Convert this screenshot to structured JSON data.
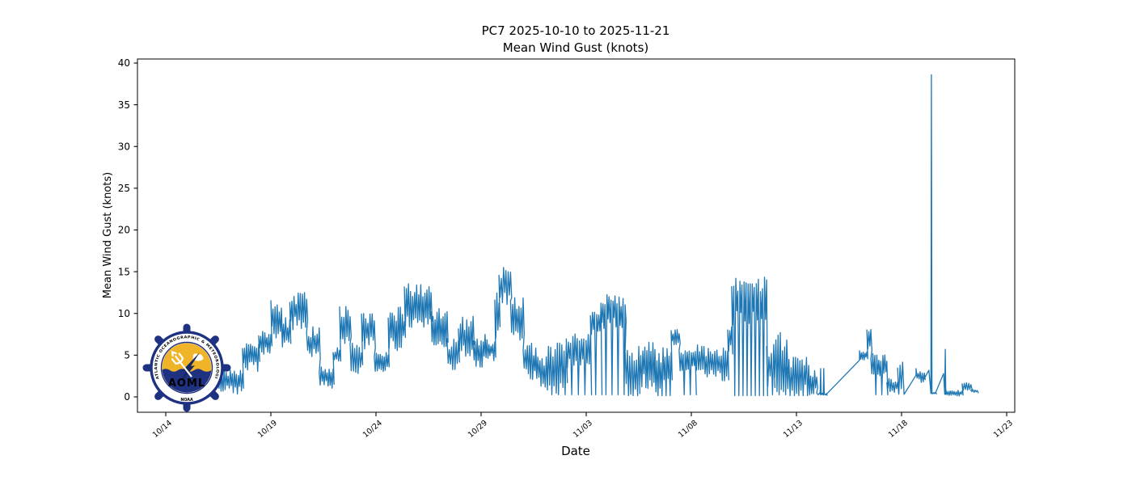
{
  "title": {
    "line1": "PC7 2025-10-10 to 2025-11-21",
    "line2": "Mean Wind Gust (knots)"
  },
  "axes": {
    "xlabel": "Date",
    "ylabel": "Mean Wind Gust (knots)",
    "y_ticks": [
      0,
      5,
      10,
      15,
      20,
      25,
      30,
      35,
      40
    ],
    "x_ticks": [
      {
        "day": 4,
        "label": "10/14"
      },
      {
        "day": 9,
        "label": "10/19"
      },
      {
        "day": 14,
        "label": "10/24"
      },
      {
        "day": 19,
        "label": "10/29"
      },
      {
        "day": 24,
        "label": "11/03"
      },
      {
        "day": 29,
        "label": "11/08"
      },
      {
        "day": 34,
        "label": "11/13"
      },
      {
        "day": 39,
        "label": "11/18"
      },
      {
        "day": 44,
        "label": "11/23"
      }
    ],
    "ylim": [
      -1.9,
      40.4
    ],
    "xlim_days": [
      2.65,
      44.39
    ],
    "grid": false
  },
  "chart_data": {
    "type": "line",
    "series_name": "Mean Wind Gust",
    "units": "knots",
    "line_color": "#1f77b4",
    "x_unit": "days since 2025-10-10",
    "data_start_day": 4.54,
    "data_end_day": 42.6,
    "max_value": 38.6,
    "max_value_day": 40.42,
    "envelope_note": "noisy high-frequency gust record encoded as min/max envelope segments; drops = intermittent dips to ~0",
    "envelope_segments": [
      {
        "mode": "band",
        "d0": 4.54,
        "d1": 6.0,
        "lo": 0.7,
        "hi": 3.2
      },
      {
        "mode": "band",
        "d0": 6.0,
        "d1": 7.65,
        "lo": 0.3,
        "hi": 3.4
      },
      {
        "mode": "band",
        "d0": 7.65,
        "d1": 8.42,
        "lo": 3.0,
        "hi": 6.8
      },
      {
        "mode": "band",
        "d0": 8.42,
        "d1": 9.0,
        "lo": 5.0,
        "hi": 8.2
      },
      {
        "mode": "band",
        "d0": 9.0,
        "d1": 9.5,
        "lo": 7.0,
        "hi": 11.8
      },
      {
        "mode": "band",
        "d0": 9.5,
        "d1": 9.9,
        "lo": 5.5,
        "hi": 9.5
      },
      {
        "mode": "band",
        "d0": 9.9,
        "d1": 10.7,
        "lo": 8.0,
        "hi": 12.7
      },
      {
        "mode": "band",
        "d0": 10.7,
        "d1": 11.3,
        "lo": 4.5,
        "hi": 8.5
      },
      {
        "mode": "band",
        "d0": 11.3,
        "d1": 11.96,
        "lo": 1.0,
        "hi": 3.8
      },
      {
        "mode": "band",
        "d0": 11.96,
        "d1": 12.27,
        "lo": 4.0,
        "hi": 6.0
      },
      {
        "mode": "band",
        "d0": 12.27,
        "d1": 12.77,
        "lo": 6.0,
        "hi": 11.0
      },
      {
        "mode": "band",
        "d0": 12.77,
        "d1": 13.31,
        "lo": 2.7,
        "hi": 6.5
      },
      {
        "mode": "band",
        "d0": 13.31,
        "d1": 13.92,
        "lo": 5.5,
        "hi": 10.5
      },
      {
        "mode": "band",
        "d0": 13.92,
        "d1": 14.58,
        "lo": 3.0,
        "hi": 5.5
      },
      {
        "mode": "band",
        "d0": 14.58,
        "d1": 15.35,
        "lo": 5.5,
        "hi": 10.9
      },
      {
        "mode": "band",
        "d0": 15.35,
        "d1": 16.62,
        "lo": 8.3,
        "hi": 13.7
      },
      {
        "mode": "band",
        "d0": 16.62,
        "d1": 17.38,
        "lo": 5.7,
        "hi": 10.9
      },
      {
        "mode": "band",
        "d0": 17.38,
        "d1": 17.92,
        "lo": 2.8,
        "hi": 7.0
      },
      {
        "mode": "band",
        "d0": 17.92,
        "d1": 18.62,
        "lo": 4.4,
        "hi": 9.8
      },
      {
        "mode": "band",
        "d0": 18.62,
        "d1": 19.19,
        "lo": 3.5,
        "hi": 7.5
      },
      {
        "mode": "band",
        "d0": 19.19,
        "d1": 19.65,
        "lo": 4.3,
        "hi": 7.0
      },
      {
        "mode": "band",
        "d0": 19.65,
        "d1": 19.85,
        "lo": 7.0,
        "hi": 13.0
      },
      {
        "mode": "band",
        "d0": 19.85,
        "d1": 20.4,
        "lo": 11.0,
        "hi": 15.9
      },
      {
        "mode": "band",
        "d0": 20.4,
        "d1": 21.0,
        "lo": 6.0,
        "hi": 12.0
      },
      {
        "mode": "band",
        "d0": 21.0,
        "d1": 21.6,
        "lo": 2.0,
        "hi": 6.5
      },
      {
        "mode": "band",
        "d0": 21.6,
        "d1": 22.1,
        "lo": 1.0,
        "hi": 5.0
      },
      {
        "mode": "band",
        "d0": 22.1,
        "d1": 23.05,
        "lo": 0.3,
        "hi": 6.5,
        "drops": "some"
      },
      {
        "mode": "band",
        "d0": 23.05,
        "d1": 24.2,
        "lo": 3.5,
        "hi": 7.9,
        "drops": "some"
      },
      {
        "mode": "band",
        "d0": 24.2,
        "d1": 24.7,
        "lo": 7.5,
        "hi": 10.8,
        "drops": "some"
      },
      {
        "mode": "band",
        "d0": 24.7,
        "d1": 25.85,
        "lo": 8.0,
        "hi": 12.3,
        "drops": "some"
      },
      {
        "mode": "band",
        "d0": 25.85,
        "d1": 26.5,
        "lo": 0.3,
        "hi": 5.8,
        "drops": "dense"
      },
      {
        "mode": "band",
        "d0": 26.5,
        "d1": 27.27,
        "lo": 0.7,
        "hi": 7.0
      },
      {
        "mode": "band",
        "d0": 27.27,
        "d1": 28.04,
        "lo": 0.3,
        "hi": 6.0,
        "drops": "dense"
      },
      {
        "mode": "band",
        "d0": 28.04,
        "d1": 28.42,
        "lo": 6.0,
        "hi": 8.1
      },
      {
        "mode": "band",
        "d0": 28.42,
        "d1": 29.19,
        "lo": 2.9,
        "hi": 6.0,
        "drops": "some"
      },
      {
        "mode": "band",
        "d0": 29.19,
        "d1": 30.73,
        "lo": 1.9,
        "hi": 6.3
      },
      {
        "mode": "band",
        "d0": 30.73,
        "d1": 30.92,
        "lo": 5.0,
        "hi": 8.6
      },
      {
        "mode": "band",
        "d0": 30.92,
        "d1": 32.58,
        "lo": 8.6,
        "hi": 14.6,
        "drops": "dense"
      },
      {
        "mode": "band",
        "d0": 32.58,
        "d1": 32.92,
        "lo": 0.5,
        "hi": 6.9,
        "drops": "some"
      },
      {
        "mode": "band",
        "d0": 32.92,
        "d1": 33.54,
        "lo": 0.4,
        "hi": 7.8,
        "drops": "some"
      },
      {
        "mode": "band",
        "d0": 33.54,
        "d1": 34.58,
        "lo": 0.3,
        "hi": 5.2,
        "drops": "dense"
      },
      {
        "mode": "band",
        "d0": 34.58,
        "d1": 34.96,
        "lo": 0.2,
        "hi": 3.2
      },
      {
        "mode": "flat",
        "d0": 34.96,
        "d1": 35.1,
        "lo": 0.2,
        "hi": 0.5
      },
      {
        "mode": "spike",
        "d": 35.15,
        "v": 3.4,
        "base": 0.3
      },
      {
        "mode": "flat",
        "d0": 35.2,
        "d1": 35.26,
        "lo": 0.2,
        "hi": 0.5
      },
      {
        "mode": "spike",
        "d": 35.3,
        "v": 3.4,
        "base": 0.3
      },
      {
        "mode": "flat",
        "d0": 35.34,
        "d1": 35.42,
        "lo": 0.2,
        "hi": 0.4
      },
      {
        "mode": "line",
        "d0": 35.42,
        "d1": 37.0,
        "v0": 0.3,
        "v1": 4.4
      },
      {
        "mode": "band",
        "d0": 37.0,
        "d1": 37.35,
        "lo": 4.4,
        "hi": 5.6
      },
      {
        "mode": "band",
        "d0": 37.35,
        "d1": 37.54,
        "lo": 5.5,
        "hi": 8.1
      },
      {
        "mode": "band",
        "d0": 37.54,
        "d1": 38.3,
        "lo": 2.5,
        "hi": 5.2,
        "drops": "some"
      },
      {
        "mode": "band",
        "d0": 38.3,
        "d1": 38.81,
        "lo": 0.4,
        "hi": 2.3
      },
      {
        "mode": "band",
        "d0": 38.81,
        "d1": 39.05,
        "lo": 0.3,
        "hi": 4.6
      },
      {
        "mode": "line",
        "d0": 39.12,
        "d1": 39.69,
        "v0": 0.3,
        "v1": 2.6
      },
      {
        "mode": "band",
        "d0": 39.69,
        "d1": 40.08,
        "lo": 1.7,
        "hi": 3.4
      },
      {
        "mode": "line",
        "d0": 40.08,
        "d1": 40.3,
        "v0": 2.2,
        "v1": 3.2
      },
      {
        "mode": "spike",
        "d": 40.42,
        "v": 38.6,
        "base": 0.4
      },
      {
        "mode": "flat",
        "d0": 40.45,
        "d1": 40.62,
        "lo": 0.3,
        "hi": 0.6
      },
      {
        "mode": "line",
        "d0": 40.62,
        "d1": 41.0,
        "v0": 0.5,
        "v1": 2.8
      },
      {
        "mode": "spike",
        "d": 41.08,
        "v": 5.7,
        "base": 0.3
      },
      {
        "mode": "flat",
        "d0": 41.12,
        "d1": 41.88,
        "lo": 0.1,
        "hi": 0.8
      },
      {
        "mode": "band",
        "d0": 41.88,
        "d1": 42.3,
        "lo": 0.7,
        "hi": 1.7
      },
      {
        "mode": "band",
        "d0": 42.3,
        "d1": 42.6,
        "lo": 0.5,
        "hi": 0.9
      }
    ]
  },
  "logo": {
    "acronym": "AOML",
    "agency": "NOAA",
    "ring_text": "ATLANTIC OCEANOGRAPHIC & METEOROLOGICAL LABORATORY",
    "colors": {
      "navy": "#1f3282",
      "gold": "#f0b429",
      "cream": "#faf0cf",
      "white": "#ffffff"
    }
  }
}
